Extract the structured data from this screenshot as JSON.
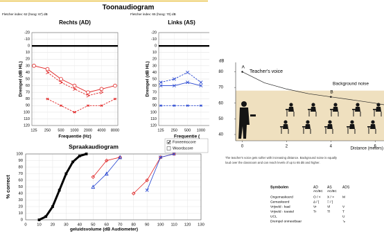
{
  "page_title": "Toonaudiogram",
  "chart_data": [
    {
      "type": "line",
      "fletcher_index": "Fletcher index: 62 (hoog: 67) dB",
      "title": "Rechts (AD)",
      "xlabel": "Frequentie (Hz)",
      "ylabel": "Drempel (dB HL)",
      "categories": [
        "125",
        "250",
        "500",
        "1000",
        "2000",
        "4000",
        "8000"
      ],
      "ylim": [
        -20,
        120
      ],
      "yticks": [
        -20,
        -10,
        0,
        10,
        20,
        30,
        40,
        50,
        60,
        70,
        80,
        90,
        100,
        110,
        120
      ],
      "y_inverted": true,
      "reference_line": 0,
      "grid": true,
      "series": [
        {
          "color": "#e02020",
          "marker": "circle",
          "dash": false,
          "values": [
            30,
            35,
            50,
            60,
            70,
            65,
            60
          ]
        },
        {
          "color": "#e02020",
          "marker": "arrow",
          "dash": true,
          "values": [
            null,
            40,
            55,
            65,
            75,
            70,
            null
          ]
        },
        {
          "color": "#e02020",
          "marker": "star",
          "dash": true,
          "values": [
            null,
            80,
            90,
            100,
            90,
            90,
            80
          ]
        }
      ]
    },
    {
      "type": "line",
      "fletcher_index": "Fletcher index: 65 (hoog: 70) dB",
      "title": "Links (AS)",
      "xlabel": "Frequentie (",
      "ylabel": "Drempel (dB HL)",
      "categories": [
        "125",
        "250",
        "500",
        "1000"
      ],
      "ylim": [
        -20,
        120
      ],
      "yticks": [
        -20,
        -10,
        0,
        10,
        20,
        30,
        40,
        50,
        60,
        70,
        80,
        90,
        100,
        110,
        120
      ],
      "y_inverted": true,
      "reference_line": 0,
      "grid": true,
      "series": [
        {
          "color": "#2040d0",
          "marker": "cross",
          "dash": true,
          "values": [
            55,
            50,
            40,
            55
          ]
        },
        {
          "color": "#2040d0",
          "marker": "cross",
          "dash": false,
          "values": [
            60,
            60,
            55,
            60
          ]
        },
        {
          "color": "#2040d0",
          "marker": "star",
          "dash": true,
          "values": [
            90,
            90,
            90,
            90
          ]
        }
      ]
    },
    {
      "type": "line",
      "title": "Spraakaudiogram",
      "xlabel": "geluidsvolume (dB Audiometer)",
      "ylabel": "% correct",
      "xlim": [
        0,
        130
      ],
      "xticks": [
        0,
        10,
        20,
        30,
        40,
        50,
        60,
        70,
        80,
        90,
        100,
        110,
        120,
        130
      ],
      "ylim": [
        0,
        100
      ],
      "yticks": [
        0,
        10,
        20,
        30,
        40,
        50,
        60,
        70,
        80,
        90,
        100
      ],
      "grid": true,
      "legend": [
        {
          "label": "Foneemscore",
          "checked": true
        },
        {
          "label": "Woordscore",
          "checked": false
        }
      ],
      "series": [
        {
          "color": "#000000",
          "marker": "square",
          "width": 3,
          "x": [
            10,
            15,
            20,
            25,
            30,
            35,
            40,
            45
          ],
          "values": [
            0,
            5,
            20,
            45,
            70,
            88,
            97,
            100
          ]
        },
        {
          "color": "#e02020",
          "marker": "diamond",
          "width": 0.8,
          "x": [
            50,
            60,
            70
          ],
          "values": [
            65,
            90,
            95
          ]
        },
        {
          "color": "#2040d0",
          "marker": "triangle",
          "width": 0.8,
          "x": [
            50,
            60,
            70
          ],
          "values": [
            50,
            70,
            95
          ]
        },
        {
          "color": "#e02020",
          "marker": "diamond",
          "width": 0.8,
          "x": [
            80,
            90,
            100,
            110
          ],
          "values": [
            40,
            60,
            95,
            100
          ]
        },
        {
          "color": "#2040d0",
          "marker": "cross",
          "width": 0.8,
          "x": [
            90,
            100,
            110
          ],
          "values": [
            45,
            95,
            100
          ]
        }
      ]
    },
    {
      "type": "line",
      "ylabel": "dB",
      "xlabel": "Distance (meters)",
      "xlim": [
        -0.3,
        6.4
      ],
      "xticks": [
        0,
        2,
        4,
        6
      ],
      "ylim": [
        36,
        86
      ],
      "yticks": [
        40,
        50,
        60,
        70,
        80
      ],
      "noise_level": 68,
      "noise_color": "#efe0bf",
      "noise_label": "Background noise",
      "voice_label": "Teacher's voice",
      "color": "#222222",
      "annotations": [
        {
          "text": "A",
          "x": 0
        },
        {
          "text": "B",
          "x": 4
        }
      ],
      "x": [
        0,
        1,
        2,
        3,
        4,
        5,
        6,
        6.4
      ],
      "values": [
        80,
        73,
        69,
        66,
        64,
        62,
        60,
        59
      ],
      "caption": [
        "The teacher's voice gets softer with increasing distance. Background noise is equally",
        "loud over the classroom and can reach levels of up to 65 dB and higher."
      ]
    }
  ],
  "symbols": {
    "title": "Symbolen",
    "columns": [
      "AD",
      "AS",
      "ADS"
    ],
    "subheader": [
      "AC/BC",
      "AC/BC"
    ],
    "rows": [
      [
        "Ongemaskeerd",
        "O / <",
        "X / >",
        "M"
      ],
      [
        "Gemaskeerd",
        "Δ / [",
        "□ / ]",
        null
      ],
      [
        "Vrijveld - kaal",
        "Vr",
        "Vl",
        "V"
      ],
      [
        "Vrijveld - toestel",
        "Tr",
        "Tl",
        "T"
      ],
      [
        "UCL",
        null,
        null,
        "U"
      ],
      [
        "Drempel onmeetbaar",
        null,
        null,
        "↘"
      ]
    ]
  }
}
